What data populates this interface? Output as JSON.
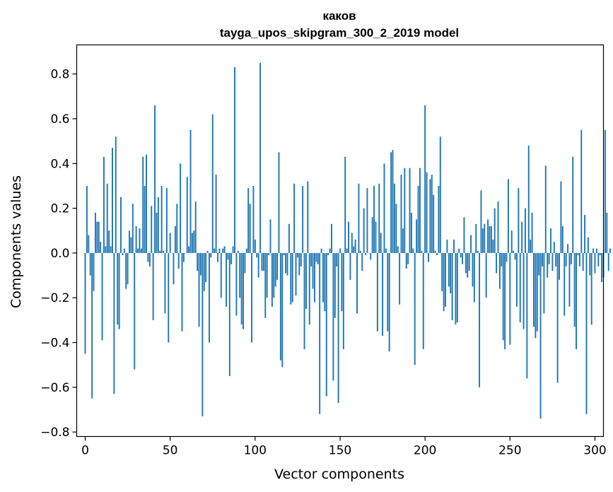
{
  "chart_data": {
    "type": "bar",
    "title": "каков",
    "subtitle": "tayga_upos_skipgram_300_2_2019 model",
    "xlabel": "Vector components",
    "ylabel": "Components values",
    "xlim": [
      -5,
      305
    ],
    "ylim": [
      -0.82,
      0.93
    ],
    "xticks": [
      0,
      50,
      100,
      150,
      200,
      250,
      300
    ],
    "yticks": [
      -0.8,
      -0.6,
      -0.4,
      -0.2,
      0.0,
      0.2,
      0.4,
      0.6,
      0.8
    ],
    "ytick_labels": [
      "−0.8",
      "−0.6",
      "−0.4",
      "−0.2",
      "0.0",
      "0.2",
      "0.4",
      "0.6",
      "0.8"
    ],
    "grid": false,
    "bar_color": "#1f77b4",
    "values": [
      -0.45,
      0.3,
      0.08,
      -0.1,
      -0.65,
      -0.17,
      0.18,
      0.14,
      0.14,
      0.05,
      -0.39,
      0.43,
      0.03,
      0.31,
      0.1,
      0.03,
      0.47,
      -0.63,
      0.52,
      -0.32,
      -0.34,
      0.25,
      -0.01,
      0.02,
      -0.16,
      -0.14,
      0.1,
      0.07,
      0.22,
      -0.52,
      0.12,
      0.02,
      0.11,
      0.02,
      0.43,
      0.3,
      0.44,
      -0.04,
      -0.06,
      0.21,
      -0.3,
      0.66,
      0.18,
      0.25,
      0.01,
      0.3,
      0.01,
      -0.27,
      0.29,
      -0.4,
      0.09,
      0.0,
      -0.14,
      0.12,
      0.22,
      -0.07,
      0.4,
      -0.35,
      -0.04,
      0.0,
      0.34,
      0.03,
      0.55,
      0.09,
      0.1,
      0.23,
      -0.08,
      -0.33,
      -0.1,
      -0.73,
      -0.17,
      -0.13,
      0.01,
      -0.4,
      -0.02,
      0.62,
      0.02,
      0.35,
      -0.04,
      0.02,
      -0.2,
      0.02,
      0.03,
      -0.24,
      -0.03,
      -0.55,
      -0.05,
      0.03,
      0.83,
      -0.28,
      0.01,
      -0.2,
      -0.32,
      -0.34,
      -0.09,
      0.02,
      0.29,
      0.22,
      -0.4,
      0.3,
      0.06,
      -0.02,
      -0.11,
      0.85,
      -0.08,
      -0.08,
      -0.29,
      -0.2,
      -0.01,
      0.15,
      -0.24,
      -0.2,
      -0.15,
      -0.12,
      0.45,
      -0.48,
      -0.51,
      -0.01,
      -0.09,
      -0.1,
      0.13,
      -0.23,
      -0.22,
      0.31,
      -0.19,
      -0.02,
      -0.1,
      -0.06,
      0.3,
      -0.43,
      -0.25,
      0.32,
      -0.32,
      -0.06,
      -0.16,
      -0.22,
      -0.04,
      -0.05,
      -0.72,
      0.02,
      -0.22,
      -0.26,
      -0.64,
      -0.01,
      0.02,
      0.13,
      -0.57,
      -0.29,
      -0.06,
      -0.67,
      0.02,
      -0.26,
      -0.43,
      0.43,
      0.02,
      0.14,
      -0.12,
      0.09,
      0.03,
      0.06,
      -0.27,
      0.31,
      0.01,
      -0.08,
      0.2,
      -0.01,
      0.29,
      0.0,
      -0.03,
      0.16,
      0.3,
      0.14,
      -0.35,
      0.31,
      0.09,
      -0.37,
      0.4,
      0.02,
      -0.35,
      -0.44,
      0.45,
      0.46,
      0.31,
      0.22,
      0.03,
      -0.23,
      0.35,
      0.11,
      0.38,
      -0.07,
      -0.05,
      0.38,
      0.18,
      0.02,
      -0.5,
      0.15,
      0.3,
      0.38,
      0.01,
      -0.43,
      0.66,
      0.36,
      -0.04,
      0.33,
      0.35,
      0.26,
      0.01,
      -0.01,
      0.3,
      0.52,
      -0.17,
      -0.26,
      -0.24,
      0.06,
      -0.15,
      -0.18,
      -0.3,
      0.06,
      -0.32,
      -0.31,
      0.02,
      -0.02,
      -0.05,
      0.16,
      -0.09,
      -0.11,
      -0.08,
      0.08,
      -0.15,
      -0.22,
      0.13,
      0.01,
      -0.6,
      0.28,
      0.11,
      0.13,
      -0.2,
      0.15,
      0.12,
      0.12,
      0.06,
      0.2,
      -0.09,
      0.23,
      -0.16,
      -0.06,
      -0.39,
      -0.43,
      -0.04,
      0.33,
      -0.41,
      0.1,
      0.01,
      -0.03,
      -0.24,
      0.29,
      -0.31,
      0.14,
      -0.34,
      0.2,
      -0.56,
      0.48,
      0.06,
      0.18,
      -0.33,
      -0.38,
      -0.35,
      -0.1,
      -0.74,
      -0.06,
      -0.27,
      0.39,
      -0.11,
      -0.05,
      0.11,
      -0.08,
      0.05,
      -0.06,
      -0.58,
      -0.12,
      0.32,
      0.12,
      -0.28,
      -0.06,
      0.04,
      -0.24,
      -0.05,
      0.43,
      -0.33,
      -0.43,
      -0.01,
      -0.06,
      0.55,
      -0.08,
      0.17,
      -0.72,
      0.07,
      -0.1,
      -0.32,
      0.02,
      -0.09,
      0.02,
      -0.06,
      -0.01,
      -0.13,
      -0.11,
      0.55,
      0.18,
      -0.08,
      0.02
    ]
  }
}
